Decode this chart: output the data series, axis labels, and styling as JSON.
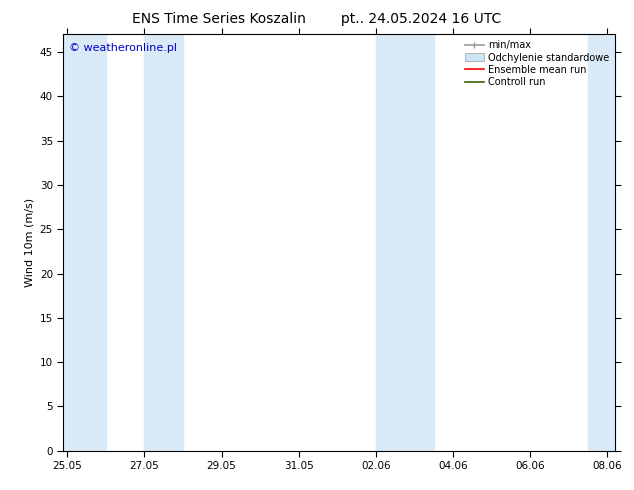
{
  "title_left": "ENS Time Series Koszalin",
  "title_right": "pt.. 24.05.2024 16 UTC",
  "ylabel": "Wind 10m (m/s)",
  "ylim": [
    0,
    47
  ],
  "yticks": [
    0,
    5,
    10,
    15,
    20,
    25,
    30,
    35,
    40,
    45
  ],
  "watermark": "© weatheronline.pl",
  "watermark_color": "#0000cc",
  "background_color": "#ffffff",
  "plot_bg_color": "#ffffff",
  "band_color": "#daeaf7",
  "x_tick_labels": [
    "25.05",
    "27.05",
    "29.05",
    "31.05",
    "02.06",
    "04.06",
    "06.06",
    "08.06"
  ],
  "x_tick_positions": [
    0,
    2,
    4,
    6,
    8,
    10,
    12,
    14
  ],
  "xlim": [
    -0.1,
    14.2
  ],
  "shade_bands": [
    [
      -0.1,
      1.0
    ],
    [
      2.0,
      3.0
    ],
    [
      8.0,
      9.5
    ],
    [
      13.5,
      14.2
    ]
  ],
  "title_fontsize": 10,
  "label_fontsize": 8,
  "tick_fontsize": 7.5,
  "legend_fontsize": 7,
  "watermark_fontsize": 8
}
